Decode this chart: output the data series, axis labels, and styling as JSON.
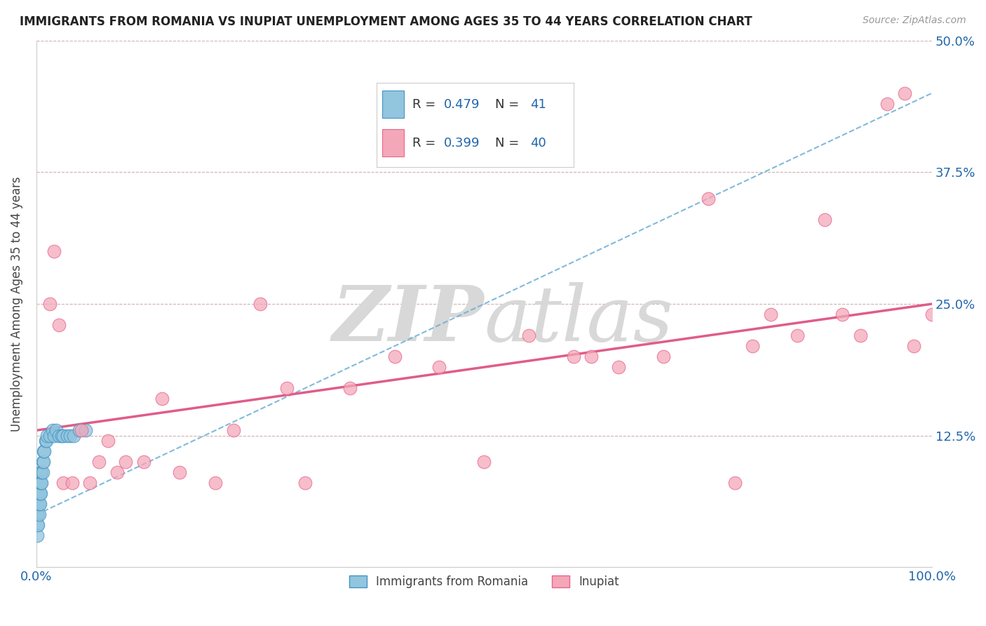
{
  "title": "IMMIGRANTS FROM ROMANIA VS INUPIAT UNEMPLOYMENT AMONG AGES 35 TO 44 YEARS CORRELATION CHART",
  "source": "Source: ZipAtlas.com",
  "ylabel": "Unemployment Among Ages 35 to 44 years",
  "xlim": [
    0,
    1.0
  ],
  "ylim": [
    0,
    0.5
  ],
  "yticks": [
    0.0,
    0.125,
    0.25,
    0.375,
    0.5
  ],
  "ytick_labels": [
    "",
    "12.5%",
    "25.0%",
    "37.5%",
    "50.0%"
  ],
  "xtick_labels": [
    "0.0%",
    "100.0%"
  ],
  "legend_label1": "Immigrants from Romania",
  "legend_label2": "Inupiat",
  "romania_color": "#92c5de",
  "inupiat_color": "#f4a7b9",
  "romania_edge_color": "#4393c3",
  "inupiat_edge_color": "#e8648a",
  "romania_line_color": "#6baed6",
  "inupiat_line_color": "#e05c8a",
  "text_color": "#2166ac",
  "grid_color": "#d0b0b0",
  "watermark_color": "#d8d8d8",
  "romania_x": [
    0.001,
    0.001,
    0.001,
    0.001,
    0.001,
    0.002,
    0.002,
    0.002,
    0.002,
    0.003,
    0.003,
    0.003,
    0.003,
    0.004,
    0.004,
    0.004,
    0.005,
    0.005,
    0.005,
    0.006,
    0.006,
    0.007,
    0.007,
    0.008,
    0.008,
    0.009,
    0.01,
    0.011,
    0.012,
    0.015,
    0.018,
    0.02,
    0.022,
    0.025,
    0.028,
    0.03,
    0.035,
    0.038,
    0.042,
    0.048,
    0.055
  ],
  "romania_y": [
    0.04,
    0.05,
    0.06,
    0.03,
    0.07,
    0.05,
    0.04,
    0.06,
    0.07,
    0.05,
    0.06,
    0.07,
    0.08,
    0.06,
    0.07,
    0.08,
    0.07,
    0.08,
    0.09,
    0.08,
    0.09,
    0.09,
    0.1,
    0.1,
    0.11,
    0.11,
    0.12,
    0.12,
    0.125,
    0.125,
    0.13,
    0.125,
    0.13,
    0.125,
    0.125,
    0.125,
    0.125,
    0.125,
    0.125,
    0.13,
    0.13
  ],
  "inupiat_x": [
    0.015,
    0.02,
    0.025,
    0.03,
    0.04,
    0.05,
    0.06,
    0.07,
    0.08,
    0.09,
    0.1,
    0.12,
    0.14,
    0.16,
    0.2,
    0.22,
    0.25,
    0.28,
    0.3,
    0.35,
    0.4,
    0.45,
    0.5,
    0.55,
    0.6,
    0.62,
    0.65,
    0.7,
    0.75,
    0.78,
    0.8,
    0.82,
    0.85,
    0.88,
    0.9,
    0.92,
    0.95,
    0.97,
    0.98,
    1.0
  ],
  "inupiat_y": [
    0.25,
    0.3,
    0.23,
    0.08,
    0.08,
    0.13,
    0.08,
    0.1,
    0.12,
    0.09,
    0.1,
    0.1,
    0.16,
    0.09,
    0.08,
    0.13,
    0.25,
    0.17,
    0.08,
    0.17,
    0.2,
    0.19,
    0.1,
    0.22,
    0.2,
    0.2,
    0.19,
    0.2,
    0.35,
    0.08,
    0.21,
    0.24,
    0.22,
    0.33,
    0.24,
    0.22,
    0.44,
    0.45,
    0.21,
    0.24
  ],
  "romania_trend_x": [
    0.0,
    1.0
  ],
  "romania_trend_y": [
    0.05,
    0.45
  ],
  "inupiat_trend_x": [
    0.0,
    1.0
  ],
  "inupiat_trend_y": [
    0.13,
    0.25
  ]
}
